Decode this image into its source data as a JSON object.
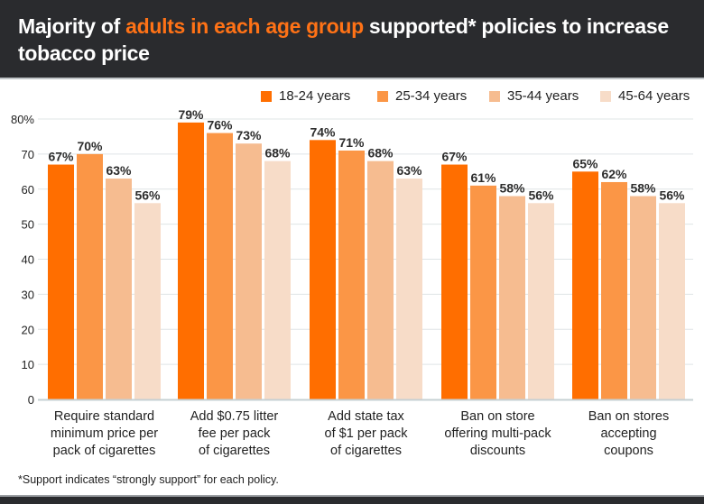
{
  "header": {
    "title_pre": "Majority of ",
    "title_highlight": "adults in each age group",
    "title_post": " supported* policies to increase tobacco price"
  },
  "footnote": "*Support indicates “strongly support” for each policy.",
  "chart_data": {
    "type": "bar",
    "title": "Majority of adults in each age group supported* policies to increase tobacco price",
    "xlabel": "",
    "ylabel": "",
    "ylim": [
      0,
      80
    ],
    "yticks": [
      0,
      10,
      20,
      30,
      40,
      50,
      60,
      70,
      80
    ],
    "ytick_labels": [
      "0",
      "10",
      "20",
      "30",
      "40",
      "50",
      "60",
      "70",
      "80%"
    ],
    "grid": true,
    "legend_position": "top-right",
    "categories": [
      [
        "Require standard",
        "minimum price per",
        "pack of cigarettes"
      ],
      [
        "Add $0.75 litter",
        "fee per pack",
        "of cigarettes"
      ],
      [
        "Add state tax",
        "of $1 per pack",
        "of cigarettes"
      ],
      [
        "Ban on store",
        "offering multi-pack",
        "discounts"
      ],
      [
        "Ban on stores",
        "accepting",
        "coupons"
      ]
    ],
    "series": [
      {
        "name": "18-24 years",
        "color": "#ff6e00",
        "values": [
          67,
          79,
          74,
          67,
          65
        ]
      },
      {
        "name": "25-34 years",
        "color": "#fb9646",
        "values": [
          70,
          76,
          71,
          61,
          62
        ]
      },
      {
        "name": "35-44 years",
        "color": "#f6bc90",
        "values": [
          63,
          73,
          68,
          58,
          58
        ]
      },
      {
        "name": "45-64 years",
        "color": "#f7dcc8",
        "values": [
          56,
          68,
          63,
          56,
          56
        ]
      }
    ],
    "value_suffix": "%"
  }
}
